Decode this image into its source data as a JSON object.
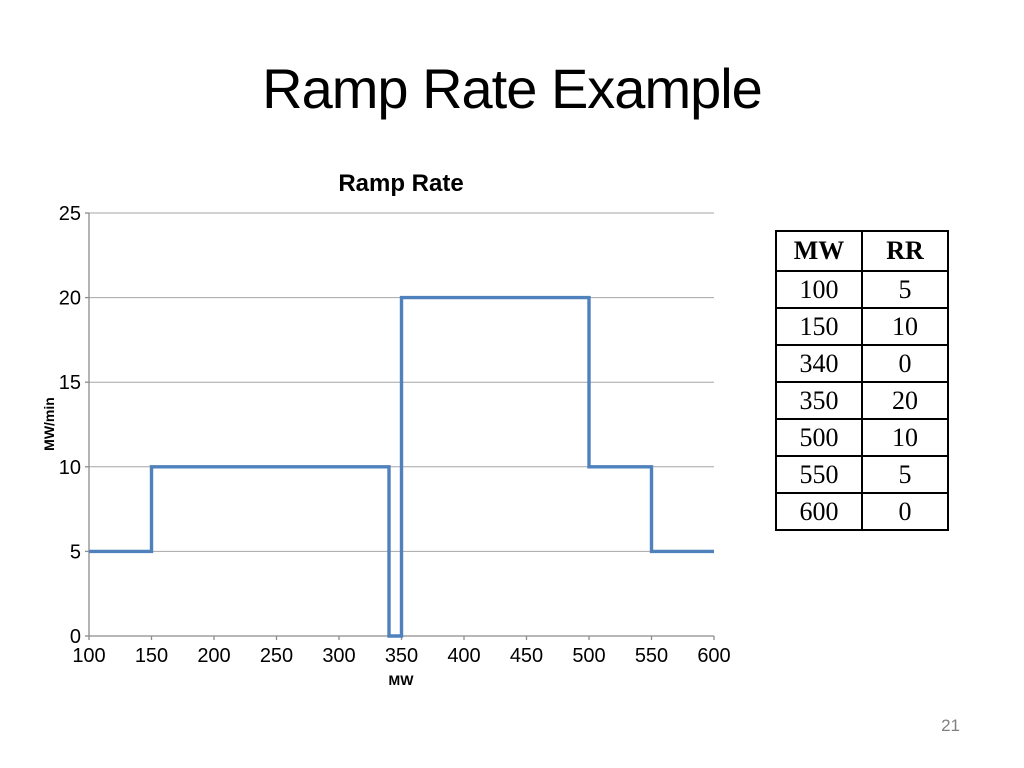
{
  "slide": {
    "title": "Ramp Rate Example",
    "page_number": "21"
  },
  "chart_data": {
    "type": "line",
    "title": "Ramp Rate",
    "xlabel": "MW",
    "ylabel": "MW/min",
    "xlim": [
      100,
      600
    ],
    "ylim": [
      0,
      25
    ],
    "x_ticks": [
      100,
      150,
      200,
      250,
      300,
      350,
      400,
      450,
      500,
      550,
      600
    ],
    "y_ticks": [
      0,
      5,
      10,
      15,
      20,
      25
    ],
    "grid": "horizontal",
    "legend": "none",
    "step": "post",
    "series": [
      {
        "name": "Ramp Rate",
        "x": [
          100,
          150,
          340,
          350,
          500,
          550,
          600
        ],
        "y": [
          5,
          10,
          0,
          20,
          10,
          5,
          0
        ],
        "drawn_vertices": [
          [
            100,
            5
          ],
          [
            150,
            5
          ],
          [
            150,
            10
          ],
          [
            340,
            10
          ],
          [
            340,
            0
          ],
          [
            350,
            0
          ],
          [
            350,
            20
          ],
          [
            500,
            20
          ],
          [
            500,
            10
          ],
          [
            550,
            10
          ],
          [
            550,
            5
          ],
          [
            600,
            5
          ]
        ]
      }
    ]
  },
  "table": {
    "headers": [
      "MW",
      "RR"
    ],
    "rows": [
      [
        "100",
        "5"
      ],
      [
        "150",
        "10"
      ],
      [
        "340",
        "0"
      ],
      [
        "350",
        "20"
      ],
      [
        "500",
        "10"
      ],
      [
        "550",
        "5"
      ],
      [
        "600",
        "0"
      ]
    ]
  },
  "colors": {
    "line": "#4F81BD",
    "gridline": "#A6A6A6",
    "axis": "#8C8C8C",
    "text": "#000000",
    "page_number": "#808080"
  }
}
